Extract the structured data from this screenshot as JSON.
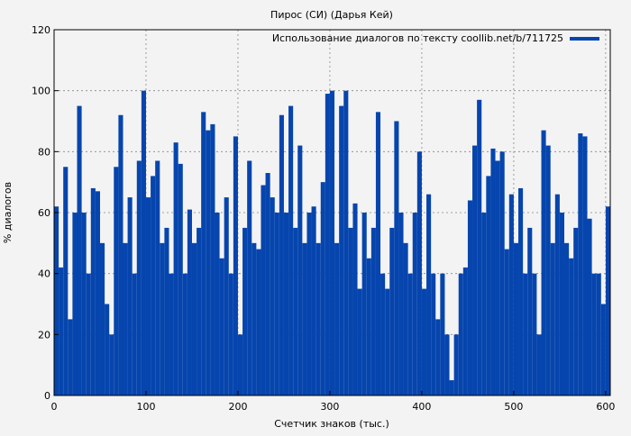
{
  "chart_data": {
    "type": "bar",
    "title": "Пирос (СИ) (Дарья Кей)",
    "xlabel": "Счетчик знаков (тыс.)",
    "ylabel": "% диалогов",
    "xlim": [
      0,
      605
    ],
    "ylim": [
      0,
      120
    ],
    "xticks": [
      0,
      100,
      200,
      300,
      400,
      500,
      600
    ],
    "yticks": [
      0,
      20,
      40,
      60,
      80,
      100,
      120
    ],
    "grid": true,
    "legend_position": "top-right",
    "bin_width": 5,
    "series": [
      {
        "name": "Использование диалогов по тексту coollib.net/b/711725",
        "color": "#0645ad",
        "x": [
          0,
          5,
          10,
          15,
          20,
          25,
          30,
          35,
          40,
          45,
          50,
          55,
          60,
          65,
          70,
          75,
          80,
          85,
          90,
          95,
          100,
          105,
          110,
          115,
          120,
          125,
          130,
          135,
          140,
          145,
          150,
          155,
          160,
          165,
          170,
          175,
          180,
          185,
          190,
          195,
          200,
          205,
          210,
          215,
          220,
          225,
          230,
          235,
          240,
          245,
          250,
          255,
          260,
          265,
          270,
          275,
          280,
          285,
          290,
          295,
          300,
          305,
          310,
          315,
          320,
          325,
          330,
          335,
          340,
          345,
          350,
          355,
          360,
          365,
          370,
          375,
          380,
          385,
          390,
          395,
          400,
          405,
          410,
          415,
          420,
          425,
          430,
          435,
          440,
          445,
          450,
          455,
          460,
          465,
          470,
          475,
          480,
          485,
          490,
          495,
          500,
          505,
          510,
          515,
          520,
          525,
          530,
          535,
          540,
          545,
          550,
          555,
          560,
          565,
          570,
          575,
          580,
          585,
          590,
          595,
          600
        ],
        "values": [
          62,
          42,
          75,
          25,
          60,
          95,
          60,
          40,
          68,
          67,
          50,
          30,
          20,
          75,
          92,
          50,
          65,
          40,
          77,
          100,
          65,
          72,
          77,
          50,
          55,
          40,
          83,
          76,
          40,
          61,
          50,
          55,
          93,
          87,
          89,
          60,
          45,
          65,
          40,
          85,
          20,
          55,
          77,
          50,
          48,
          69,
          73,
          65,
          60,
          92,
          60,
          95,
          55,
          82,
          50,
          60,
          62,
          50,
          70,
          99,
          100,
          50,
          95,
          100,
          55,
          63,
          35,
          60,
          45,
          55,
          93,
          40,
          35,
          55,
          90,
          60,
          50,
          40,
          60,
          80,
          35,
          66,
          40,
          25,
          40,
          20,
          5,
          20,
          40,
          42,
          64,
          82,
          97,
          60,
          72,
          81,
          77,
          80,
          48,
          66,
          50,
          68,
          40,
          55,
          40,
          20,
          87,
          82,
          50,
          66,
          60,
          50,
          45,
          55,
          86,
          85,
          58,
          40,
          40,
          30,
          62
        ]
      }
    ]
  }
}
